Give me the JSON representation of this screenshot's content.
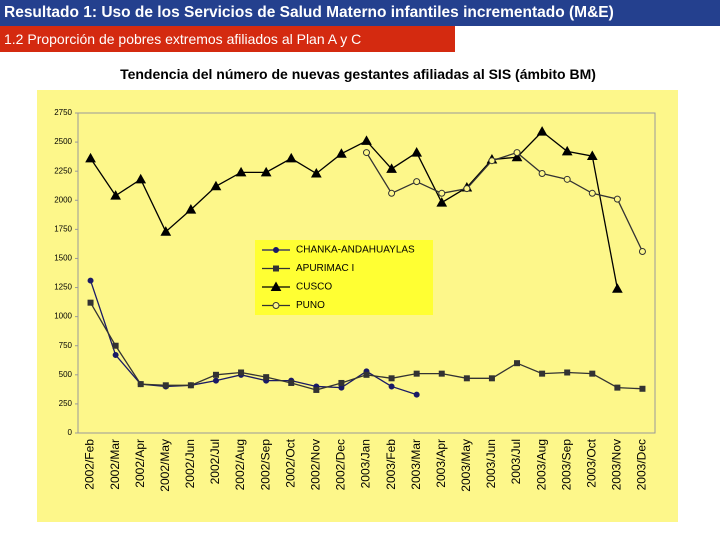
{
  "header": {
    "title": "Resultado 1: Uso de los Servicios de Salud Materno infantiles incrementado (M&E)",
    "subtitle": "1.2 Proporción de pobres extremos afiliados al Plan A y C"
  },
  "chart_data": {
    "type": "line",
    "title": "Tendencia del número de nuevas gestantes afiliadas al SIS (ámbito BM)",
    "categories": [
      "2002/Feb",
      "2002/Mar",
      "2002/Apr",
      "2002/May",
      "2002/Jun",
      "2002/Jul",
      "2002/Aug",
      "2002/Sep",
      "2002/Oct",
      "2002/Nov",
      "2002/Dec",
      "2003/Jan",
      "2003/Feb",
      "2003/Mar",
      "2003/Apr",
      "2003/May",
      "2003/Jun",
      "2003/Jul",
      "2003/Aug",
      "2003/Sep",
      "2003/Oct",
      "2003/Nov",
      "2003/Dec"
    ],
    "series": [
      {
        "name": "CHANKA-ANDAHUAYLAS",
        "color": "#1a1a66",
        "marker": "circle",
        "values": [
          1310,
          670,
          420,
          400,
          410,
          450,
          500,
          450,
          450,
          400,
          390,
          530,
          400,
          330,
          null,
          null,
          null,
          null,
          null,
          null,
          null,
          null,
          null
        ]
      },
      {
        "name": "APURIMAC I",
        "color": "#333333",
        "marker": "square",
        "values": [
          1120,
          750,
          420,
          410,
          410,
          500,
          520,
          480,
          430,
          370,
          430,
          500,
          470,
          510,
          510,
          470,
          470,
          600,
          510,
          520,
          510,
          390,
          380
        ]
      },
      {
        "name": "CUSCO",
        "color": "#000000",
        "marker": "triangle",
        "values": [
          2360,
          2040,
          2180,
          1730,
          1920,
          2120,
          2240,
          2240,
          2360,
          2230,
          2400,
          2510,
          2270,
          2410,
          1980,
          2110,
          2350,
          2370,
          2590,
          2420,
          2380,
          1240,
          null
        ]
      },
      {
        "name": "PUNO",
        "color": "#333333",
        "marker": "open-circle",
        "values": [
          null,
          null,
          null,
          null,
          null,
          null,
          null,
          null,
          null,
          null,
          null,
          2410,
          2060,
          2160,
          2060,
          2100,
          2340,
          2410,
          2230,
          2180,
          2060,
          2010,
          1560
        ]
      }
    ],
    "ylim": [
      0,
      2750
    ],
    "yticks": [
      0,
      250,
      500,
      750,
      1000,
      1250,
      1500,
      1750,
      2000,
      2250,
      2500,
      2750
    ],
    "grid": false,
    "legend": "center"
  }
}
